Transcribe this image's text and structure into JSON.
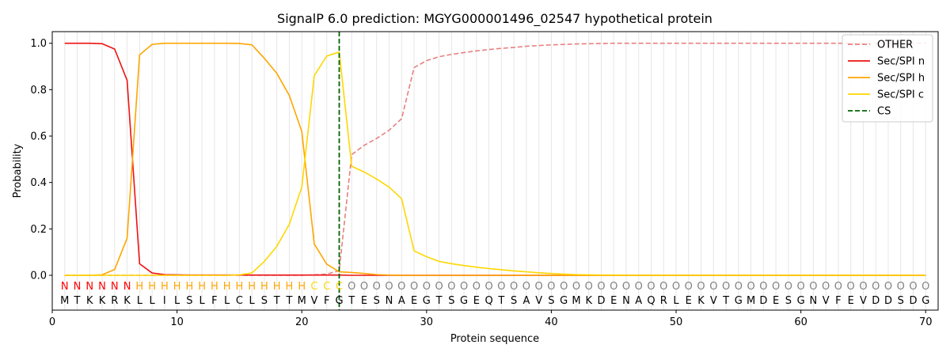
{
  "chart_data": {
    "type": "line",
    "title": "SignalP 6.0 prediction: MGYG000001496_02547 hypothetical protein",
    "xlabel": "Protein sequence",
    "ylabel": "Probability",
    "xlim": [
      0,
      71
    ],
    "ylim": [
      -0.15,
      1.05
    ],
    "xticks": [
      0,
      10,
      20,
      30,
      40,
      50,
      60,
      70
    ],
    "yticks": [
      0.0,
      0.2,
      0.4,
      0.6,
      0.8,
      1.0
    ],
    "xtick_labels": [
      "0",
      "10",
      "20",
      "30",
      "40",
      "50",
      "60",
      "70"
    ],
    "ytick_labels": [
      "0.0",
      "0.2",
      "0.4",
      "0.6",
      "0.8",
      "1.0"
    ],
    "grid": "vertical lines at each residue",
    "legend_position": "top-right",
    "sequence": [
      "M",
      "T",
      "K",
      "K",
      "R",
      "K",
      "L",
      "L",
      "I",
      "L",
      "S",
      "L",
      "F",
      "L",
      "C",
      "L",
      "S",
      "T",
      "T",
      "M",
      "V",
      "F",
      "G",
      "T",
      "E",
      "S",
      "N",
      "A",
      "E",
      "G",
      "T",
      "S",
      "G",
      "E",
      "Q",
      "T",
      "S",
      "A",
      "V",
      "S",
      "G",
      "M",
      "K",
      "D",
      "E",
      "N",
      "A",
      "Q",
      "R",
      "L",
      "E",
      "K",
      "V",
      "T",
      "G",
      "M",
      "D",
      "E",
      "S",
      "G",
      "N",
      "V",
      "F",
      "E",
      "V",
      "D",
      "D",
      "S",
      "D",
      "G"
    ],
    "labels": [
      "N",
      "N",
      "N",
      "N",
      "N",
      "N",
      "H",
      "H",
      "H",
      "H",
      "H",
      "H",
      "H",
      "H",
      "H",
      "H",
      "H",
      "H",
      "H",
      "H",
      "C",
      "C",
      "C",
      "O",
      "O",
      "O",
      "O",
      "O",
      "O",
      "O",
      "O",
      "O",
      "O",
      "O",
      "O",
      "O",
      "O",
      "O",
      "O",
      "O",
      "O",
      "O",
      "O",
      "O",
      "O",
      "O",
      "O",
      "O",
      "O",
      "O",
      "O",
      "O",
      "O",
      "O",
      "O",
      "O",
      "O",
      "O",
      "O",
      "O",
      "O",
      "O",
      "O",
      "O",
      "O",
      "O",
      "O",
      "O",
      "O",
      "O"
    ],
    "label_colors": {
      "N": "#ff0000",
      "H": "#ffa500",
      "C": "#ffd700",
      "O": "#808080"
    },
    "x": [
      1,
      2,
      3,
      4,
      5,
      6,
      7,
      8,
      9,
      10,
      11,
      12,
      13,
      14,
      15,
      16,
      17,
      18,
      19,
      20,
      21,
      22,
      23,
      24,
      25,
      26,
      27,
      28,
      29,
      30,
      31,
      32,
      33,
      34,
      35,
      36,
      37,
      38,
      39,
      40,
      41,
      42,
      43,
      44,
      45,
      46,
      47,
      48,
      49,
      50,
      51,
      52,
      53,
      54,
      55,
      56,
      57,
      58,
      59,
      60,
      61,
      62,
      63,
      64,
      65,
      66,
      67,
      68,
      69,
      70
    ],
    "series": [
      {
        "name": "OTHER",
        "color": "#e88080",
        "dash": "dashed",
        "values": [
          0,
          0,
          0,
          0,
          0,
          0,
          0,
          0,
          0,
          0,
          0,
          0,
          0,
          0,
          0,
          0,
          0,
          0,
          0,
          0,
          0.002,
          0.005,
          0.02,
          0.52,
          0.56,
          0.59,
          0.625,
          0.675,
          0.895,
          0.925,
          0.942,
          0.952,
          0.96,
          0.967,
          0.973,
          0.978,
          0.982,
          0.987,
          0.99,
          0.993,
          0.995,
          0.997,
          0.998,
          0.999,
          1,
          1,
          1,
          1,
          1,
          1,
          1,
          1,
          1,
          1,
          1,
          1,
          1,
          1,
          1,
          1,
          1,
          1,
          1,
          1,
          1,
          1,
          1,
          1,
          1,
          1
        ]
      },
      {
        "name": "Sec/SPI n",
        "color": "#ee1111",
        "dash": "solid",
        "values": [
          1.0,
          1.0,
          1.0,
          0.998,
          0.975,
          0.84,
          0.05,
          0.01,
          0.003,
          0.002,
          0.001,
          0.001,
          0.001,
          0.001,
          0.001,
          0.001,
          0.001,
          0.001,
          0.001,
          0.001,
          0.001,
          0.001,
          0.001,
          0,
          0,
          0,
          0,
          0,
          0,
          0,
          0,
          0,
          0,
          0,
          0,
          0,
          0,
          0,
          0,
          0,
          0,
          0,
          0,
          0,
          0,
          0,
          0,
          0,
          0,
          0,
          0,
          0,
          0,
          0,
          0,
          0,
          0,
          0,
          0,
          0,
          0,
          0,
          0,
          0,
          0,
          0,
          0,
          0,
          0,
          0
        ]
      },
      {
        "name": "Sec/SPI h",
        "color": "#ffa500",
        "dash": "solid",
        "values": [
          0,
          0,
          0,
          0.002,
          0.025,
          0.16,
          0.95,
          0.995,
          1.0,
          1.0,
          1.0,
          1.0,
          1.0,
          1.0,
          0.999,
          0.993,
          0.935,
          0.87,
          0.775,
          0.62,
          0.135,
          0.048,
          0.015,
          0.012,
          0.008,
          0.003,
          0.001,
          0,
          0,
          0,
          0,
          0,
          0,
          0,
          0,
          0,
          0,
          0,
          0,
          0,
          0,
          0,
          0,
          0,
          0,
          0,
          0,
          0,
          0,
          0,
          0,
          0,
          0,
          0,
          0,
          0,
          0,
          0,
          0,
          0,
          0,
          0,
          0,
          0,
          0,
          0,
          0,
          0,
          0,
          0
        ]
      },
      {
        "name": "Sec/SPI c",
        "color": "#ffd700",
        "dash": "solid",
        "values": [
          0,
          0,
          0,
          0,
          0,
          0,
          0,
          0,
          0,
          0,
          0,
          0,
          0,
          0,
          0.002,
          0.01,
          0.06,
          0.125,
          0.22,
          0.38,
          0.86,
          0.945,
          0.962,
          0.47,
          0.445,
          0.415,
          0.38,
          0.33,
          0.105,
          0.08,
          0.06,
          0.05,
          0.042,
          0.035,
          0.029,
          0.024,
          0.019,
          0.015,
          0.011,
          0.008,
          0.005,
          0.003,
          0.002,
          0.001,
          0.001,
          0,
          0,
          0,
          0,
          0,
          0,
          0,
          0,
          0,
          0,
          0,
          0,
          0,
          0,
          0,
          0,
          0,
          0,
          0,
          0,
          0,
          0,
          0,
          0,
          0
        ]
      }
    ],
    "cs": {
      "name": "CS",
      "x": 23,
      "color": "#006400",
      "dash": "dashed"
    }
  }
}
